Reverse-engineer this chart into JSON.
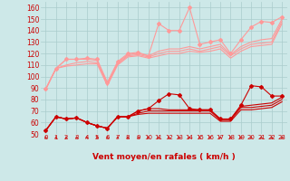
{
  "x": [
    0,
    1,
    2,
    3,
    4,
    5,
    6,
    7,
    8,
    9,
    10,
    11,
    12,
    13,
    14,
    15,
    16,
    17,
    18,
    19,
    20,
    21,
    22,
    23
  ],
  "background_color": "#cde8e8",
  "grid_color": "#aacccc",
  "xlabel": "Vent moyen/en rafales ( km/h )",
  "ylim": [
    50,
    165
  ],
  "yticks": [
    50,
    60,
    70,
    80,
    90,
    100,
    110,
    120,
    130,
    140,
    150,
    160
  ],
  "lines_light": [
    [
      89,
      107,
      115,
      115,
      116,
      115,
      95,
      113,
      120,
      121,
      118,
      146,
      140,
      140,
      160,
      128,
      130,
      132,
      120,
      132,
      143,
      148,
      147,
      152
    ],
    [
      89,
      107,
      115,
      115,
      115,
      114,
      94,
      112,
      119,
      120,
      118,
      122,
      124,
      124,
      126,
      124,
      126,
      128,
      119,
      126,
      130,
      132,
      133,
      150
    ],
    [
      89,
      107,
      110,
      112,
      113,
      112,
      93,
      111,
      118,
      119,
      117,
      120,
      122,
      122,
      124,
      122,
      124,
      126,
      118,
      124,
      128,
      129,
      130,
      148
    ],
    [
      89,
      107,
      109,
      110,
      111,
      111,
      92,
      110,
      117,
      118,
      116,
      118,
      120,
      120,
      122,
      121,
      122,
      124,
      116,
      122,
      126,
      127,
      128,
      146
    ]
  ],
  "lines_dark": [
    [
      53,
      65,
      63,
      64,
      60,
      57,
      55,
      65,
      65,
      70,
      72,
      79,
      85,
      84,
      72,
      71,
      71,
      63,
      63,
      75,
      92,
      91,
      83,
      83
    ],
    [
      53,
      65,
      63,
      64,
      60,
      57,
      55,
      65,
      65,
      70,
      72,
      72,
      71,
      71,
      71,
      71,
      71,
      63,
      63,
      74,
      75,
      76,
      77,
      82
    ],
    [
      53,
      65,
      63,
      64,
      60,
      57,
      55,
      65,
      65,
      68,
      70,
      70,
      70,
      70,
      70,
      70,
      70,
      62,
      62,
      73,
      73,
      74,
      75,
      80
    ],
    [
      53,
      65,
      63,
      64,
      60,
      57,
      55,
      65,
      65,
      67,
      68,
      68,
      68,
      68,
      68,
      68,
      68,
      61,
      61,
      71,
      71,
      72,
      73,
      78
    ]
  ],
  "color_light": "#ff9999",
  "color_dark": "#cc0000",
  "markersize": 2.0,
  "linewidth": 0.8,
  "arrow_color": "#cc2222",
  "tick_fontsize": 5.5,
  "xlabel_fontsize": 6.5
}
